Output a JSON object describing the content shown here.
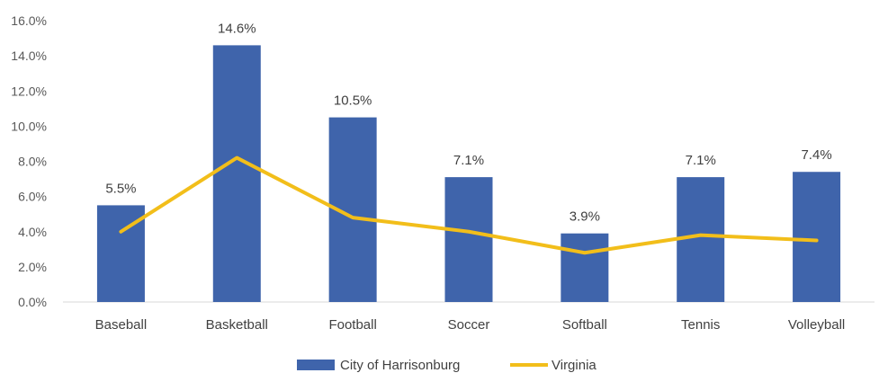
{
  "chart_data": {
    "type": "bar",
    "categories": [
      "Baseball",
      "Basketball",
      "Football",
      "Soccer",
      "Softball",
      "Tennis",
      "Volleyball"
    ],
    "series": [
      {
        "name": "City of Harrisonburg",
        "kind": "bar",
        "color": "#3F64AB",
        "values": [
          5.5,
          14.6,
          10.5,
          7.1,
          3.9,
          7.1,
          7.4
        ],
        "data_labels": [
          "5.5%",
          "14.6%",
          "10.5%",
          "7.1%",
          "3.9%",
          "7.1%",
          "7.4%"
        ]
      },
      {
        "name": "Virginia",
        "kind": "line",
        "color": "#F2BE1A",
        "values": [
          4.0,
          8.2,
          4.8,
          4.0,
          2.8,
          3.8,
          3.5
        ]
      }
    ],
    "y_ticks": [
      "0.0%",
      "2.0%",
      "4.0%",
      "6.0%",
      "8.0%",
      "10.0%",
      "12.0%",
      "14.0%",
      "16.0%"
    ],
    "ylim": [
      0,
      16
    ],
    "title": "",
    "xlabel": "",
    "ylabel": "",
    "grid": false,
    "legend_position": "bottom"
  }
}
